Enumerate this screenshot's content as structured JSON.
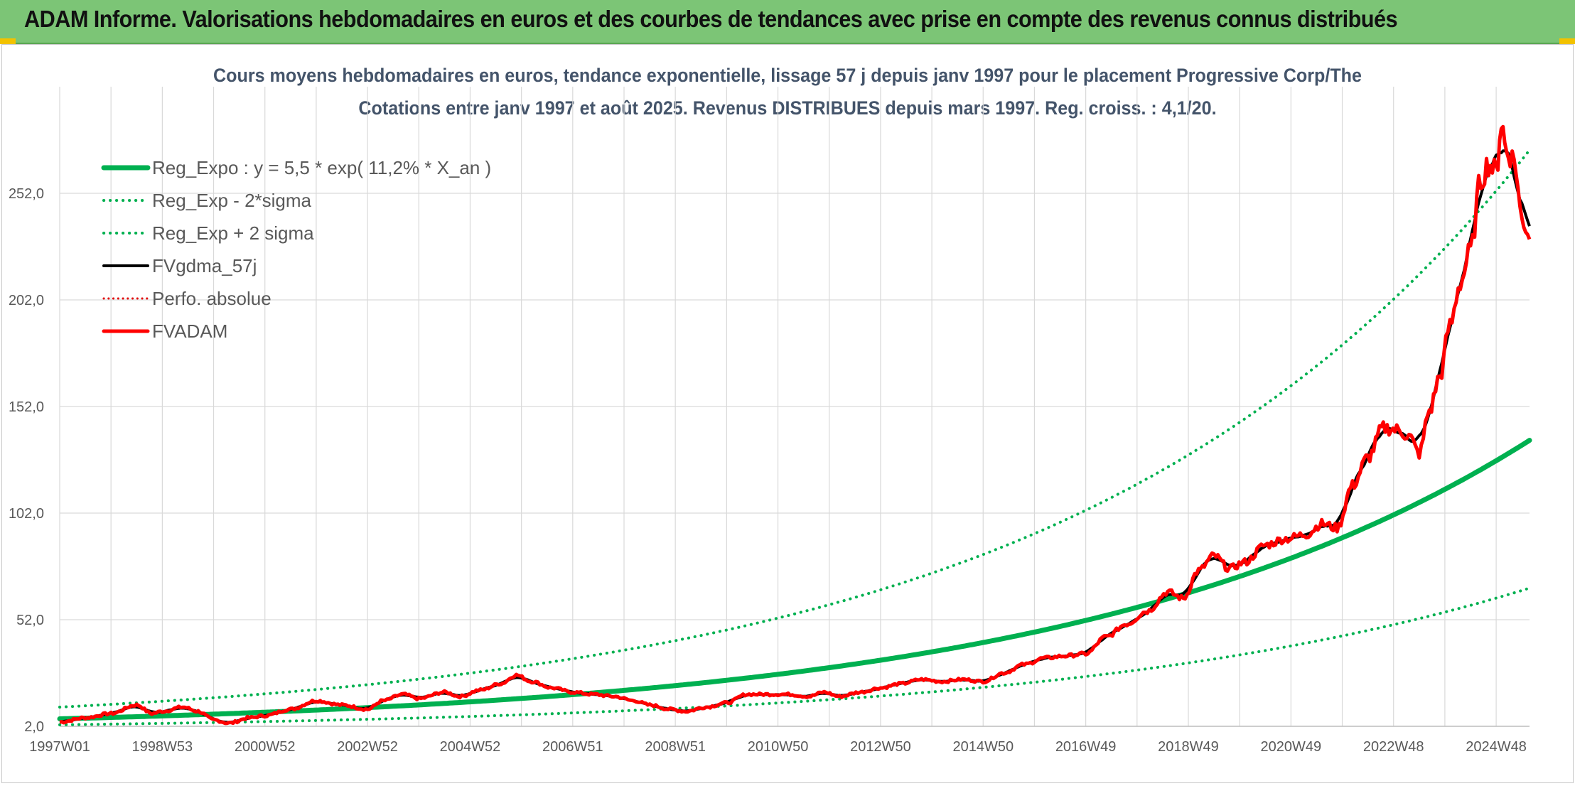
{
  "banner": {
    "title": "ADAM Informe. Valorisations hebdomadaires en euros et des courbes de tendances avec prise en compte des revenus connus distribués"
  },
  "chart_data": {
    "type": "line",
    "title": "Cours moyens hebdomadaires en euros, tendance exponentielle, lissage 57 j depuis janv 1997 pour le placement Progressive Corp/The",
    "subtitle": "Cotations entre janv 1997 et août 2025. Revenus DISTRIBUES depuis mars 1997. Reg. croiss. : 4,1/20.",
    "xlabel": "",
    "ylabel": "",
    "x_tick_labels": [
      "1997W01",
      "1998W53",
      "2000W52",
      "2002W52",
      "2004W52",
      "2006W51",
      "2008W51",
      "2010W50",
      "2012W50",
      "2014W50",
      "2016W49",
      "2018W49",
      "2020W49",
      "2022W48",
      "2024W48"
    ],
    "x_tick_years": [
      1997.0,
      1999.0,
      2001.0,
      2003.0,
      2005.0,
      2007.0,
      2009.0,
      2011.0,
      2013.0,
      2015.0,
      2017.0,
      2019.0,
      2021.0,
      2023.0,
      2025.0
    ],
    "x_range": [
      1997.0,
      2025.65
    ],
    "y_tick_labels": [
      "2,0",
      "52,0",
      "102,0",
      "152,0",
      "202,0",
      "252,0"
    ],
    "y_ticks": [
      2,
      52,
      102,
      152,
      202,
      252
    ],
    "ylim": [
      2,
      302
    ],
    "grid": true,
    "legend_position": "top-left",
    "series": [
      {
        "name": "Reg_Expo : y = 5,5 * exp( 11,2% *  X_an )",
        "color": "#00b050",
        "style": "solid",
        "width": 7,
        "curve": "exp",
        "a": 5.5,
        "b": 0.112
      },
      {
        "name": "Reg_Exp - 2*sigma",
        "color": "#00b050",
        "style": "dotted",
        "width": 4,
        "curve": "exp",
        "a": 2.7,
        "b": 0.112
      },
      {
        "name": "Reg_Exp + 2 sigma",
        "color": "#00b050",
        "style": "dotted",
        "width": 4,
        "curve": "exp",
        "a": 11.0,
        "b": 0.112
      },
      {
        "name": "FVgdma_57j",
        "color": "#000000",
        "style": "solid",
        "width": 4,
        "curve": "data"
      },
      {
        "name": "Perfo. absolue",
        "color": "#e00000",
        "style": "dotted",
        "width": 3,
        "curve": "none"
      },
      {
        "name": "FVADAM",
        "color": "#ff0000",
        "style": "solid",
        "width": 5,
        "curve": "data"
      }
    ],
    "price_points": [
      [
        1997.0,
        4
      ],
      [
        1997.5,
        6
      ],
      [
        1998.0,
        8
      ],
      [
        1998.5,
        12
      ],
      [
        1998.8,
        8
      ],
      [
        1999.0,
        9
      ],
      [
        1999.4,
        11
      ],
      [
        1999.7,
        9
      ],
      [
        2000.0,
        5
      ],
      [
        2000.3,
        3.5
      ],
      [
        2000.7,
        6
      ],
      [
        2001.0,
        7
      ],
      [
        2001.5,
        10
      ],
      [
        2002.0,
        14
      ],
      [
        2002.5,
        12
      ],
      [
        2003.0,
        10
      ],
      [
        2003.3,
        14
      ],
      [
        2003.7,
        17
      ],
      [
        2004.0,
        15
      ],
      [
        2004.5,
        18
      ],
      [
        2004.8,
        16
      ],
      [
        2005.2,
        19
      ],
      [
        2005.6,
        22
      ],
      [
        2005.9,
        26
      ],
      [
        2006.2,
        23
      ],
      [
        2006.6,
        20
      ],
      [
        2007.0,
        18
      ],
      [
        2007.4,
        17
      ],
      [
        2007.8,
        16
      ],
      [
        2008.2,
        14
      ],
      [
        2008.5,
        12
      ],
      [
        2008.9,
        10
      ],
      [
        2009.2,
        9
      ],
      [
        2009.6,
        11
      ],
      [
        2010.0,
        13
      ],
      [
        2010.4,
        17
      ],
      [
        2010.8,
        17
      ],
      [
        2011.2,
        17
      ],
      [
        2011.6,
        16
      ],
      [
        2011.9,
        18
      ],
      [
        2012.2,
        16
      ],
      [
        2012.6,
        18
      ],
      [
        2013.0,
        20
      ],
      [
        2013.4,
        22
      ],
      [
        2013.8,
        24
      ],
      [
        2014.2,
        23
      ],
      [
        2014.6,
        24
      ],
      [
        2015.0,
        23
      ],
      [
        2015.4,
        27
      ],
      [
        2015.8,
        31
      ],
      [
        2016.2,
        34
      ],
      [
        2016.6,
        35
      ],
      [
        2017.0,
        36
      ],
      [
        2017.4,
        44
      ],
      [
        2017.8,
        50
      ],
      [
        2018.2,
        56
      ],
      [
        2018.6,
        65
      ],
      [
        2018.9,
        62
      ],
      [
        2019.2,
        75
      ],
      [
        2019.5,
        82
      ],
      [
        2019.8,
        76
      ],
      [
        2020.1,
        79
      ],
      [
        2020.5,
        87
      ],
      [
        2020.9,
        90
      ],
      [
        2021.3,
        92
      ],
      [
        2021.6,
        97
      ],
      [
        2021.9,
        95
      ],
      [
        2022.2,
        115
      ],
      [
        2022.5,
        128
      ],
      [
        2022.8,
        142
      ],
      [
        2023.1,
        141
      ],
      [
        2023.3,
        138
      ],
      [
        2023.5,
        130
      ],
      [
        2023.7,
        150
      ],
      [
        2023.9,
        166
      ],
      [
        2024.1,
        190
      ],
      [
        2024.3,
        210
      ],
      [
        2024.5,
        225
      ],
      [
        2024.7,
        258
      ],
      [
        2024.85,
        266
      ],
      [
        2025.0,
        262
      ],
      [
        2025.1,
        285
      ],
      [
        2025.2,
        272
      ],
      [
        2025.35,
        268
      ],
      [
        2025.5,
        240
      ],
      [
        2025.65,
        233
      ]
    ]
  }
}
